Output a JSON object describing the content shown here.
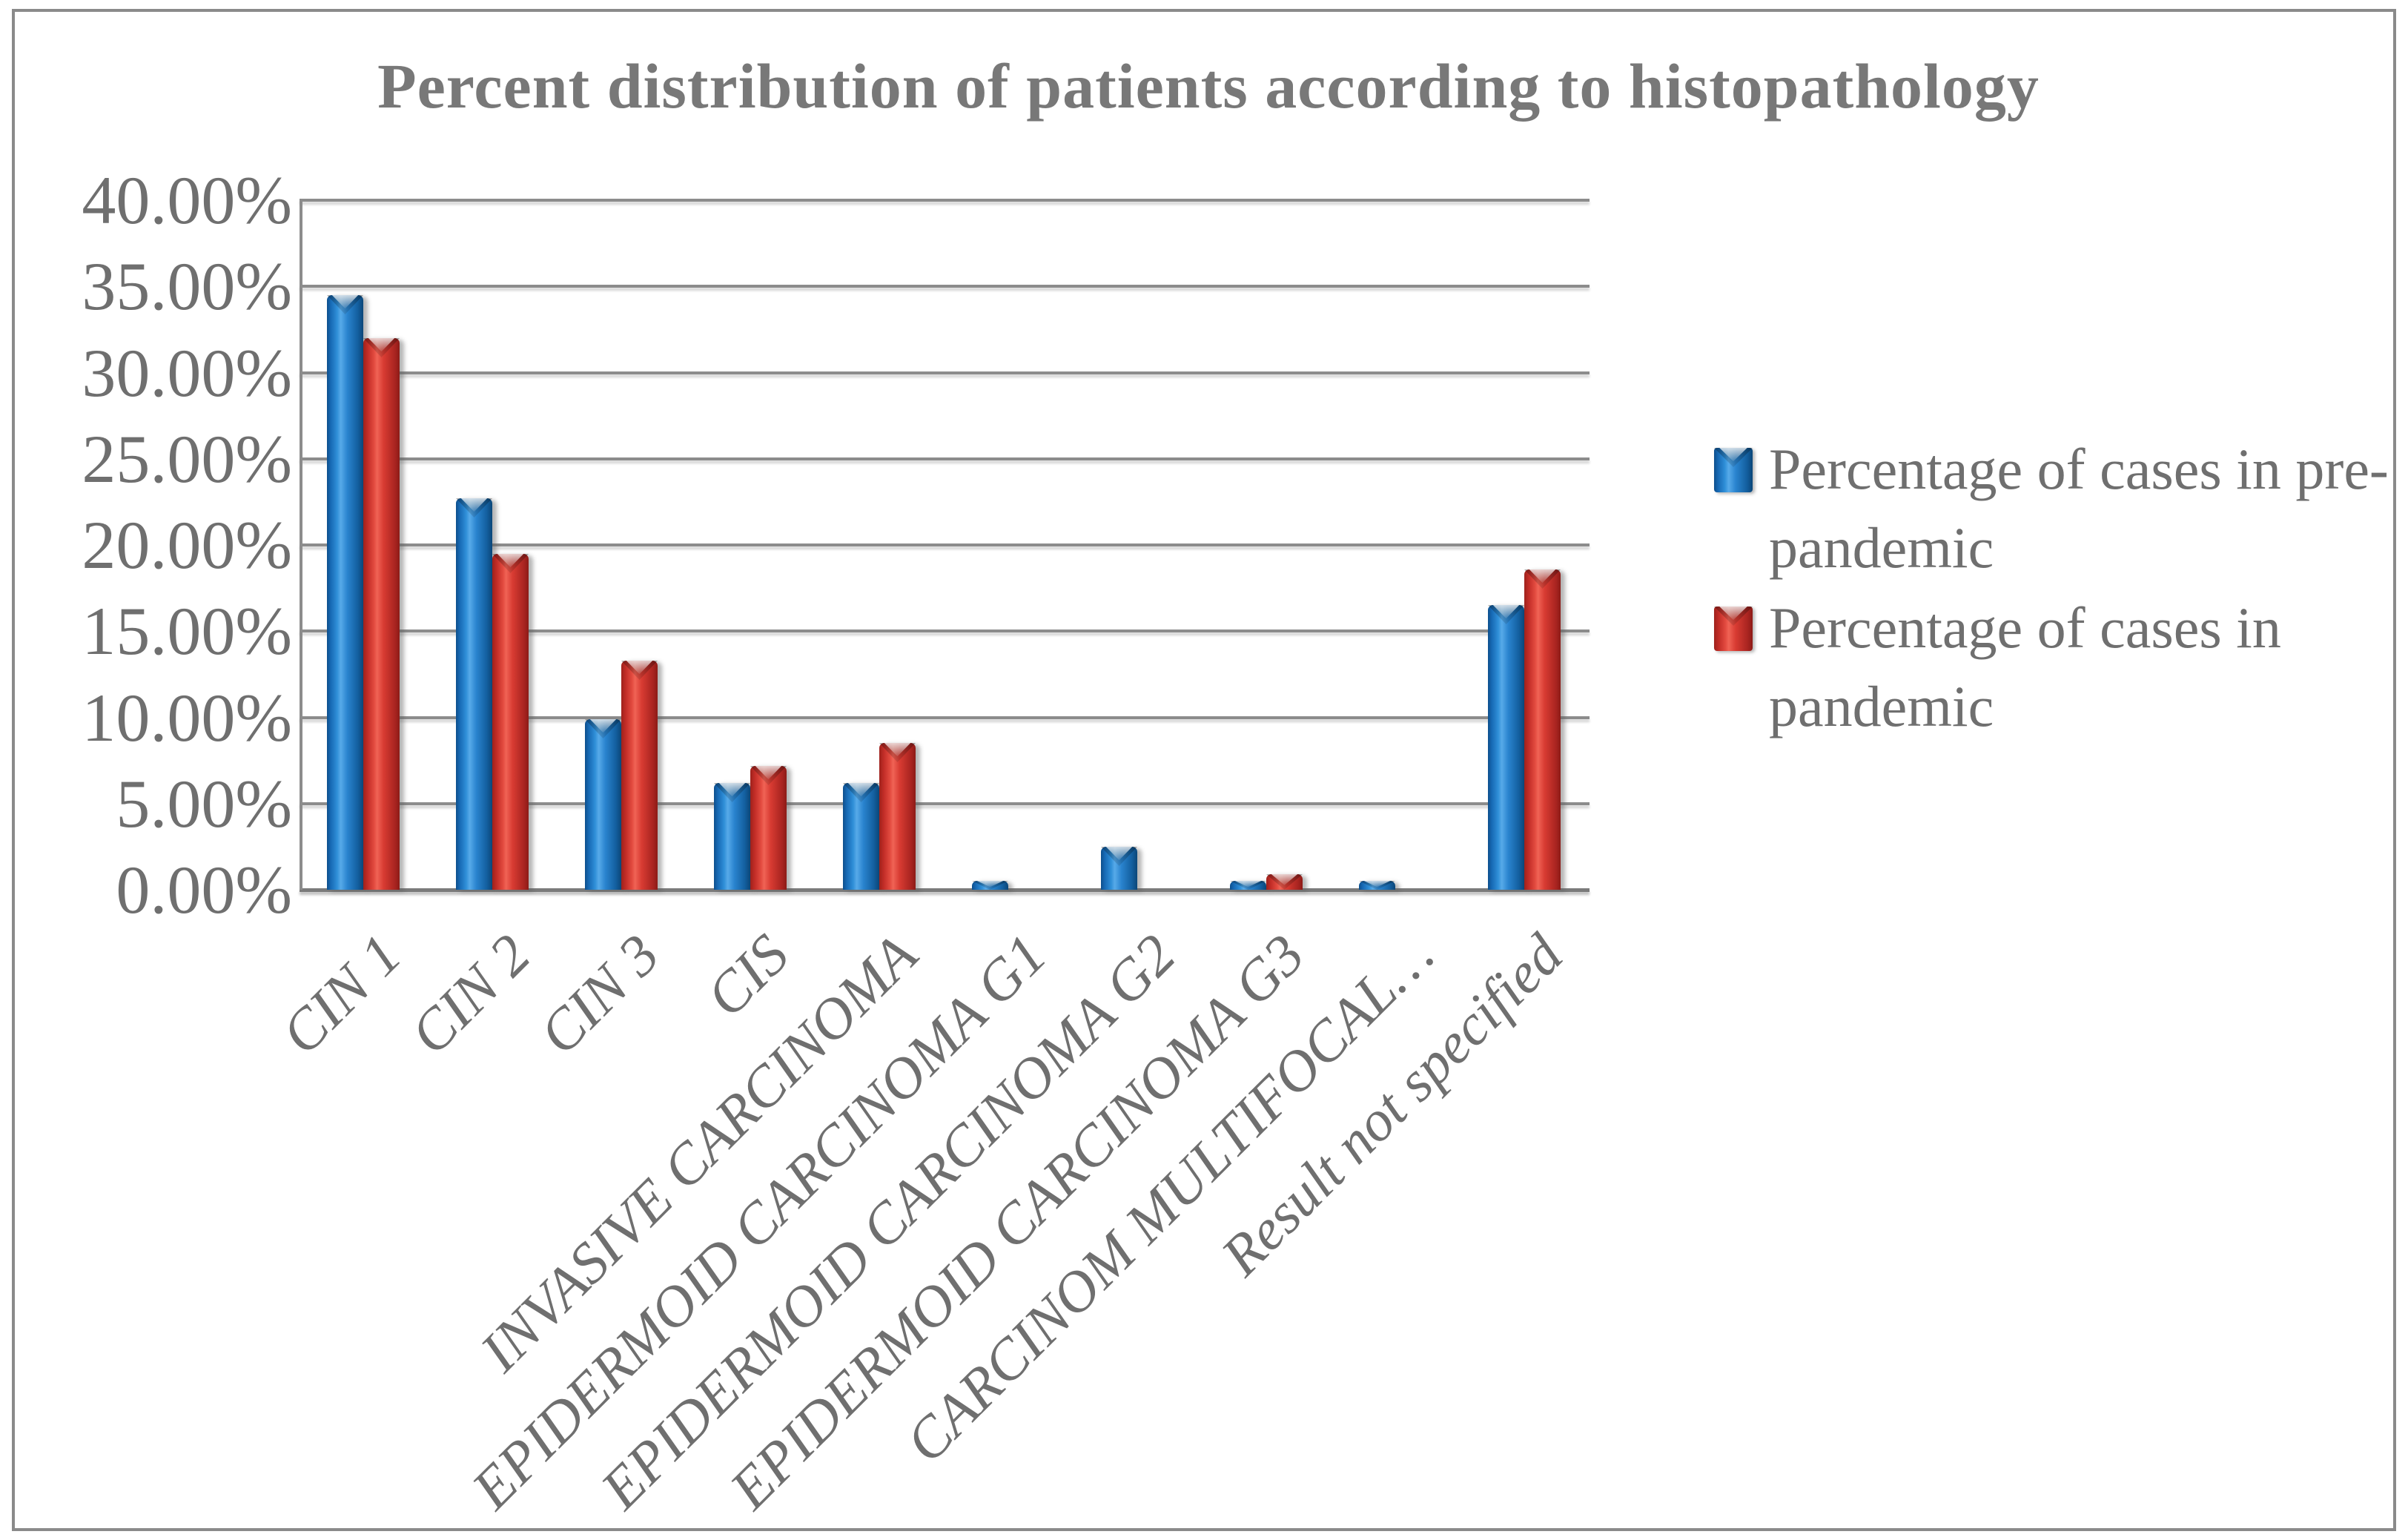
{
  "title": "Percent distribution of patients according to histopathology",
  "colors": {
    "series_pre_pandemic_blue": "#1E73C0",
    "series_pandemic_red": "#D63B32",
    "text_gray": "#6F6F6F",
    "title_gray": "#787878",
    "gridline_gray": "#8C8C8C",
    "frame_border_gray": "#8A8A8A"
  },
  "chart_data": {
    "type": "bar",
    "title": "Percent distribution of patients according to histopathology",
    "categories": [
      "CIN 1",
      "CIN 2",
      "CIN 3",
      "CIS",
      "INVASIVE CARCINOMA",
      "EPIDERMOID CARCINOMA G1",
      "EPIDERMOID CARCINOMA G2",
      "EPIDERMOID CARCINOMA G3",
      "CARCINOM MULTIFOCAL…",
      "Result not specified"
    ],
    "series": [
      {
        "name": "Percentage of cases in pre-pandemic",
        "color": "#1E73C0",
        "values": [
          34.5,
          22.7,
          9.9,
          6.2,
          6.2,
          0.5,
          2.5,
          0.5,
          0.5,
          16.5
        ]
      },
      {
        "name": "Percentage of cases in pandemic",
        "color": "#D63B32",
        "values": [
          32.0,
          19.5,
          13.3,
          7.2,
          8.5,
          0,
          0,
          0.9,
          0,
          18.6
        ]
      }
    ],
    "y_ticks": [
      "40.00%",
      "35.00%",
      "30.00%",
      "25.00%",
      "20.00%",
      "15.00%",
      "10.00%",
      "5.00%",
      "0.00%"
    ],
    "ylim": [
      0,
      40
    ],
    "xlabel": "",
    "ylabel": "",
    "grid": true,
    "grid_interval_percent": 5,
    "legend_position": "right",
    "x_label_rotation_degrees": 45
  }
}
